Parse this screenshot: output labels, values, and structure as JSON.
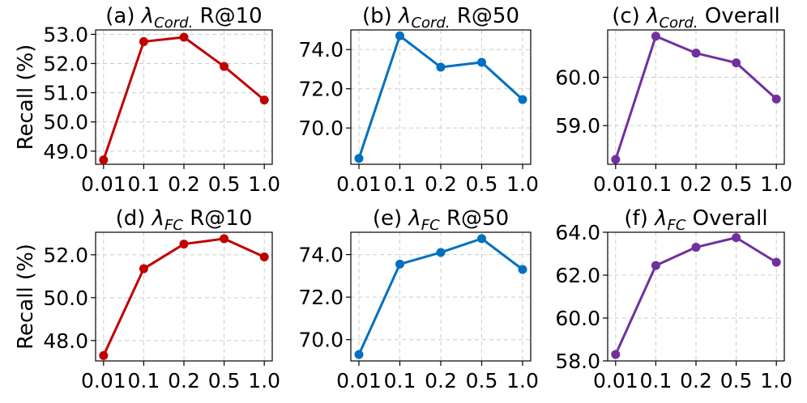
{
  "chart_data": [
    {
      "type": "line",
      "title": "(a) λ_Cord. R@10",
      "title_prefix": "(a) ",
      "title_symbol": "λ",
      "title_sub": "Cord.",
      "title_suffix": " R@10",
      "ylabel": "Recall (%)",
      "categories": [
        "0.01",
        "0.1",
        "0.2",
        "0.5",
        "1.0"
      ],
      "values": [
        48.7,
        52.75,
        52.9,
        51.9,
        50.75
      ],
      "ylim": [
        48.55,
        53.15
      ],
      "yticks": [
        49.0,
        50.0,
        51.0,
        52.0,
        53.0
      ],
      "ytick_labels": [
        "49.0",
        "50.0",
        "51.0",
        "52.0",
        "53.0"
      ],
      "color": "#c00000",
      "grid": true
    },
    {
      "type": "line",
      "title": "(b) λ_Cord. R@50",
      "title_prefix": "(b) ",
      "title_symbol": "λ",
      "title_sub": "Cord.",
      "title_suffix": " R@50",
      "ylabel": "",
      "categories": [
        "0.01",
        "0.1",
        "0.2",
        "0.5",
        "1.0"
      ],
      "values": [
        68.45,
        74.7,
        73.1,
        73.35,
        71.45
      ],
      "ylim": [
        68.15,
        75.0
      ],
      "yticks": [
        70.0,
        72.0,
        74.0
      ],
      "ytick_labels": [
        "70.0",
        "72.0",
        "74.0"
      ],
      "color": "#0070c0",
      "grid": true
    },
    {
      "type": "line",
      "title": "(c) λ_Cord. Overall",
      "title_prefix": "(c) ",
      "title_symbol": "λ",
      "title_sub": "Cord.",
      "title_suffix": " Overall",
      "ylabel": "",
      "categories": [
        "0.01",
        "0.1",
        "0.2",
        "0.5",
        "1.0"
      ],
      "values": [
        58.3,
        60.85,
        60.5,
        60.3,
        59.55
      ],
      "ylim": [
        58.2,
        60.98
      ],
      "yticks": [
        59.0,
        60.0
      ],
      "ytick_labels": [
        "59.0",
        "60.0"
      ],
      "color": "#7030a0",
      "grid": true
    },
    {
      "type": "line",
      "title": "(d) λ_FC R@10",
      "title_prefix": "(d) ",
      "title_symbol": "λ",
      "title_sub": "FC",
      "title_suffix": " R@10",
      "ylabel": "Recall (%)",
      "categories": [
        "0.01",
        "0.1",
        "0.2",
        "0.5",
        "1.0"
      ],
      "values": [
        47.3,
        51.35,
        52.5,
        52.75,
        51.9
      ],
      "ylim": [
        47.05,
        53.05
      ],
      "yticks": [
        48.0,
        50.0,
        52.0
      ],
      "ytick_labels": [
        "48.0",
        "50.0",
        "52.0"
      ],
      "color": "#c00000",
      "grid": true
    },
    {
      "type": "line",
      "title": "(e) λ_FC R@50",
      "title_prefix": "(e) ",
      "title_symbol": "λ",
      "title_sub": "FC",
      "title_suffix": " R@50",
      "ylabel": "",
      "categories": [
        "0.01",
        "0.1",
        "0.2",
        "0.5",
        "1.0"
      ],
      "values": [
        69.3,
        73.55,
        74.1,
        74.75,
        73.3
      ],
      "ylim": [
        69.0,
        75.05
      ],
      "yticks": [
        70.0,
        72.0,
        74.0
      ],
      "ytick_labels": [
        "70.0",
        "72.0",
        "74.0"
      ],
      "color": "#0070c0",
      "grid": true
    },
    {
      "type": "line",
      "title": "(f) λ_FC Overall",
      "title_prefix": "(f) ",
      "title_symbol": "λ",
      "title_sub": "FC",
      "title_suffix": " Overall",
      "ylabel": "",
      "categories": [
        "0.01",
        "0.1",
        "0.2",
        "0.5",
        "1.0"
      ],
      "values": [
        58.3,
        62.45,
        63.3,
        63.75,
        62.6
      ],
      "ylim": [
        58.0,
        64.0
      ],
      "yticks": [
        58.0,
        60.0,
        62.0,
        64.0
      ],
      "ytick_labels": [
        "58.0",
        "60.0",
        "62.0",
        "64.0"
      ],
      "color": "#7030a0",
      "grid": true
    }
  ]
}
